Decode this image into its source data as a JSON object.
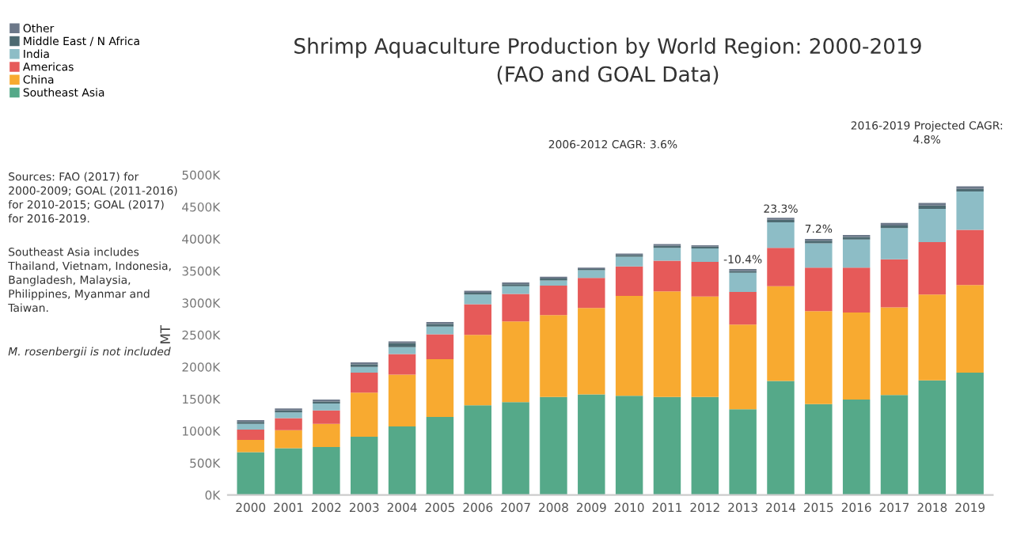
{
  "chart_data": {
    "type": "bar",
    "stacked": true,
    "title": "Shrimp Aquaculture Production by World Region: 2000-2019\n(FAO and GOAL Data)",
    "ylabel": "MT",
    "categories": [
      "2000",
      "2001",
      "2002",
      "2003",
      "2004",
      "2005",
      "2006",
      "2007",
      "2008",
      "2009",
      "2010",
      "2011",
      "2012",
      "2013",
      "2014",
      "2015",
      "2016",
      "2017",
      "2018",
      "2019"
    ],
    "series": [
      {
        "name": "Southeast Asia",
        "color": "#55a989",
        "values": [
          670,
          730,
          750,
          910,
          1070,
          1220,
          1400,
          1450,
          1530,
          1570,
          1550,
          1530,
          1530,
          1340,
          1780,
          1420,
          1490,
          1560,
          1790,
          1910
        ]
      },
      {
        "name": "China",
        "color": "#f8aa30",
        "values": [
          190,
          280,
          360,
          690,
          810,
          900,
          1100,
          1260,
          1280,
          1350,
          1560,
          1650,
          1570,
          1320,
          1480,
          1450,
          1360,
          1370,
          1340,
          1370
        ]
      },
      {
        "name": "Americas",
        "color": "#e65a59",
        "values": [
          160,
          190,
          210,
          310,
          320,
          390,
          480,
          430,
          460,
          470,
          460,
          480,
          540,
          510,
          600,
          680,
          700,
          750,
          820,
          860
        ]
      },
      {
        "name": "India",
        "color": "#8dbdc6",
        "values": [
          90,
          90,
          110,
          90,
          110,
          120,
          150,
          120,
          80,
          120,
          150,
          200,
          210,
          300,
          400,
          380,
          440,
          490,
          520,
          600
        ]
      },
      {
        "name": "Middle East / N Africa",
        "color": "#4d6a71",
        "values": [
          30,
          30,
          30,
          40,
          60,
          40,
          30,
          30,
          30,
          20,
          30,
          30,
          30,
          30,
          40,
          40,
          40,
          40,
          50,
          40
        ]
      },
      {
        "name": "Other",
        "color": "#6c7889",
        "values": [
          30,
          30,
          30,
          30,
          30,
          30,
          30,
          30,
          30,
          20,
          20,
          30,
          20,
          30,
          30,
          30,
          30,
          40,
          40,
          40
        ]
      }
    ],
    "ylim": [
      0,
      5000
    ],
    "yticks": [
      {
        "value": 0,
        "label": "0K"
      },
      {
        "value": 500,
        "label": "500K"
      },
      {
        "value": 1000,
        "label": "1000K"
      },
      {
        "value": 1500,
        "label": "1500K"
      },
      {
        "value": 2000,
        "label": "2000K"
      },
      {
        "value": 2500,
        "label": "2500K"
      },
      {
        "value": 3000,
        "label": "3000K"
      },
      {
        "value": 3500,
        "label": "3500K"
      },
      {
        "value": 4000,
        "label": "4000K"
      },
      {
        "value": 4500,
        "label": "4500K"
      },
      {
        "value": 5000,
        "label": "5000K"
      }
    ],
    "grid": false,
    "legend": "top left",
    "annotations": [
      {
        "text": "-10.4%",
        "x": "2013",
        "y": 3516
      },
      {
        "text": "23.3%",
        "x": "2014",
        "y": 4306
      },
      {
        "text": "7.2%",
        "x": "2015",
        "y": 3992
      },
      "2006-2012 CAGR: 3.6%",
      "2016-2019 Projected CAGR:\n4.8%",
      "Sources: FAO (2017) for\n2000-2009; GOAL (2011-2016)\nfor 2010-2015; GOAL (2017)\nfor 2016-2019.",
      "Southeast Asia includes\nThailand, Vietnam, Indonesia,\nBangladesh, Malaysia,\nPhilippines, Myanmar and\nTaiwan.",
      "M. rosenbergii is not included"
    ]
  }
}
